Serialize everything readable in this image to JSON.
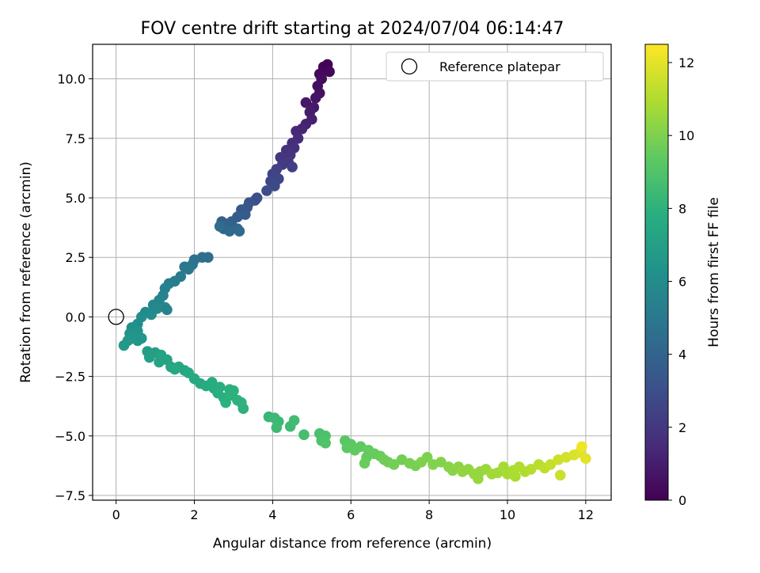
{
  "chart_data": {
    "type": "scatter",
    "title": "FOV centre drift starting at 2024/07/04 06:14:47",
    "xlabel": "Angular distance from reference (arcmin)",
    "ylabel": "Rotation from reference (arcmin)",
    "xlim": [
      -0.6,
      12.65
    ],
    "ylim": [
      -7.7,
      11.45
    ],
    "xticks": [
      0,
      2,
      4,
      6,
      8,
      10,
      12
    ],
    "xtick_labels": [
      "0",
      "2",
      "4",
      "6",
      "8",
      "10",
      "12"
    ],
    "yticks": [
      -7.5,
      -5.0,
      -2.5,
      0.0,
      2.5,
      5.0,
      7.5,
      10.0
    ],
    "ytick_labels": [
      "−7.5",
      "−5.0",
      "−2.5",
      "0.0",
      "2.5",
      "5.0",
      "7.5",
      "10.0"
    ],
    "grid": true,
    "legend": {
      "position": "top-right",
      "entries": [
        "Reference platepar"
      ]
    },
    "reference_point": {
      "x": 0,
      "y": 0
    },
    "colorbar": {
      "label": "Hours from first FF file",
      "range": [
        0,
        12.5
      ],
      "ticks": [
        0,
        2,
        4,
        6,
        8,
        10,
        12
      ],
      "tick_labels": [
        "0",
        "2",
        "4",
        "6",
        "8",
        "10",
        "12"
      ],
      "colormap": "viridis"
    },
    "points": [
      {
        "x": 5.4,
        "y": 10.6,
        "c": 0.0
      },
      {
        "x": 5.3,
        "y": 10.5,
        "c": 0.1
      },
      {
        "x": 5.45,
        "y": 10.3,
        "c": 0.2
      },
      {
        "x": 5.2,
        "y": 10.2,
        "c": 0.3
      },
      {
        "x": 5.25,
        "y": 10.0,
        "c": 0.4
      },
      {
        "x": 5.15,
        "y": 9.7,
        "c": 0.5
      },
      {
        "x": 5.2,
        "y": 9.4,
        "c": 0.6
      },
      {
        "x": 5.1,
        "y": 9.2,
        "c": 0.7
      },
      {
        "x": 4.85,
        "y": 9.0,
        "c": 0.8
      },
      {
        "x": 5.05,
        "y": 8.8,
        "c": 0.9
      },
      {
        "x": 4.95,
        "y": 8.6,
        "c": 1.0
      },
      {
        "x": 5.0,
        "y": 8.3,
        "c": 1.1
      },
      {
        "x": 4.85,
        "y": 8.1,
        "c": 1.2
      },
      {
        "x": 4.75,
        "y": 7.9,
        "c": 1.3
      },
      {
        "x": 4.6,
        "y": 7.8,
        "c": 1.4
      },
      {
        "x": 4.65,
        "y": 7.5,
        "c": 1.5
      },
      {
        "x": 4.5,
        "y": 7.3,
        "c": 1.6
      },
      {
        "x": 4.55,
        "y": 7.1,
        "c": 1.7
      },
      {
        "x": 4.35,
        "y": 7.0,
        "c": 1.8
      },
      {
        "x": 4.45,
        "y": 6.8,
        "c": 1.9
      },
      {
        "x": 4.2,
        "y": 6.7,
        "c": 2.0
      },
      {
        "x": 4.4,
        "y": 6.5,
        "c": 2.1
      },
      {
        "x": 4.25,
        "y": 6.4,
        "c": 2.2
      },
      {
        "x": 4.5,
        "y": 6.3,
        "c": 2.3
      },
      {
        "x": 4.1,
        "y": 6.2,
        "c": 2.4
      },
      {
        "x": 4.0,
        "y": 6.0,
        "c": 2.5
      },
      {
        "x": 4.15,
        "y": 5.8,
        "c": 2.6
      },
      {
        "x": 3.95,
        "y": 5.7,
        "c": 2.7
      },
      {
        "x": 4.05,
        "y": 5.5,
        "c": 2.8
      },
      {
        "x": 3.85,
        "y": 5.3,
        "c": 2.9
      },
      {
        "x": 3.6,
        "y": 5.0,
        "c": 3.0
      },
      {
        "x": 3.55,
        "y": 4.9,
        "c": 3.1
      },
      {
        "x": 3.4,
        "y": 4.8,
        "c": 3.2
      },
      {
        "x": 3.35,
        "y": 4.6,
        "c": 3.3
      },
      {
        "x": 3.2,
        "y": 4.5,
        "c": 3.4
      },
      {
        "x": 3.3,
        "y": 4.3,
        "c": 3.5
      },
      {
        "x": 3.1,
        "y": 4.2,
        "c": 3.6
      },
      {
        "x": 2.95,
        "y": 4.0,
        "c": 3.7
      },
      {
        "x": 2.7,
        "y": 4.0,
        "c": 3.8
      },
      {
        "x": 2.85,
        "y": 3.9,
        "c": 3.9
      },
      {
        "x": 2.75,
        "y": 3.7,
        "c": 4.0
      },
      {
        "x": 3.1,
        "y": 3.7,
        "c": 4.1
      },
      {
        "x": 2.9,
        "y": 3.6,
        "c": 4.2
      },
      {
        "x": 3.15,
        "y": 3.6,
        "c": 4.3
      },
      {
        "x": 2.65,
        "y": 3.8,
        "c": 4.4
      },
      {
        "x": 2.35,
        "y": 2.5,
        "c": 4.5
      },
      {
        "x": 2.2,
        "y": 2.5,
        "c": 4.6
      },
      {
        "x": 2.0,
        "y": 2.4,
        "c": 4.7
      },
      {
        "x": 1.95,
        "y": 2.2,
        "c": 4.8
      },
      {
        "x": 1.75,
        "y": 2.1,
        "c": 4.9
      },
      {
        "x": 1.85,
        "y": 2.0,
        "c": 5.0
      },
      {
        "x": 1.65,
        "y": 1.7,
        "c": 5.1
      },
      {
        "x": 1.5,
        "y": 1.5,
        "c": 5.2
      },
      {
        "x": 1.35,
        "y": 1.4,
        "c": 5.3
      },
      {
        "x": 1.25,
        "y": 1.2,
        "c": 5.4
      },
      {
        "x": 1.2,
        "y": 0.9,
        "c": 5.5
      },
      {
        "x": 1.1,
        "y": 0.7,
        "c": 5.6
      },
      {
        "x": 0.95,
        "y": 0.5,
        "c": 5.7
      },
      {
        "x": 1.25,
        "y": 0.4,
        "c": 5.8
      },
      {
        "x": 0.75,
        "y": 0.2,
        "c": 5.9
      },
      {
        "x": 0.9,
        "y": 0.1,
        "c": 6.0
      },
      {
        "x": 1.3,
        "y": 0.3,
        "c": 5.5
      },
      {
        "x": 1.05,
        "y": 0.35,
        "c": 5.8
      },
      {
        "x": 0.65,
        "y": 0.0,
        "c": 6.0
      },
      {
        "x": 0.55,
        "y": -0.3,
        "c": 6.1
      },
      {
        "x": 0.4,
        "y": -0.45,
        "c": 6.2
      },
      {
        "x": 0.55,
        "y": -0.6,
        "c": 6.3
      },
      {
        "x": 0.35,
        "y": -0.7,
        "c": 6.4
      },
      {
        "x": 0.4,
        "y": -0.9,
        "c": 6.5
      },
      {
        "x": 0.55,
        "y": -1.0,
        "c": 6.6
      },
      {
        "x": 0.3,
        "y": -1.0,
        "c": 6.6
      },
      {
        "x": 0.2,
        "y": -1.2,
        "c": 6.7
      },
      {
        "x": 0.65,
        "y": -0.9,
        "c": 6.5
      },
      {
        "x": 0.8,
        "y": -1.45,
        "c": 6.9
      },
      {
        "x": 1.0,
        "y": -1.5,
        "c": 7.0
      },
      {
        "x": 0.85,
        "y": -1.7,
        "c": 7.0
      },
      {
        "x": 1.15,
        "y": -1.6,
        "c": 7.1
      },
      {
        "x": 1.3,
        "y": -1.8,
        "c": 7.2
      },
      {
        "x": 1.1,
        "y": -1.9,
        "c": 7.2
      },
      {
        "x": 1.4,
        "y": -2.1,
        "c": 7.3
      },
      {
        "x": 1.6,
        "y": -2.1,
        "c": 7.4
      },
      {
        "x": 1.75,
        "y": -2.25,
        "c": 7.4
      },
      {
        "x": 1.5,
        "y": -2.2,
        "c": 7.5
      },
      {
        "x": 1.85,
        "y": -2.35,
        "c": 7.5
      },
      {
        "x": 2.0,
        "y": -2.6,
        "c": 7.6
      },
      {
        "x": 2.15,
        "y": -2.8,
        "c": 7.6
      },
      {
        "x": 2.3,
        "y": -2.9,
        "c": 7.7
      },
      {
        "x": 2.5,
        "y": -3.0,
        "c": 7.7
      },
      {
        "x": 2.45,
        "y": -2.75,
        "c": 7.7
      },
      {
        "x": 2.6,
        "y": -3.2,
        "c": 7.8
      },
      {
        "x": 2.75,
        "y": -3.4,
        "c": 7.8
      },
      {
        "x": 2.9,
        "y": -3.3,
        "c": 7.9
      },
      {
        "x": 3.0,
        "y": -3.1,
        "c": 7.9
      },
      {
        "x": 3.1,
        "y": -3.5,
        "c": 8.0
      },
      {
        "x": 3.25,
        "y": -3.85,
        "c": 8.0
      },
      {
        "x": 2.8,
        "y": -3.6,
        "c": 7.9
      },
      {
        "x": 2.65,
        "y": -2.95,
        "c": 7.8
      },
      {
        "x": 2.9,
        "y": -3.05,
        "c": 7.9
      },
      {
        "x": 3.2,
        "y": -3.6,
        "c": 8.0
      },
      {
        "x": 3.9,
        "y": -4.2,
        "c": 8.3
      },
      {
        "x": 4.05,
        "y": -4.25,
        "c": 8.4
      },
      {
        "x": 4.15,
        "y": -4.4,
        "c": 8.4
      },
      {
        "x": 4.1,
        "y": -4.65,
        "c": 8.5
      },
      {
        "x": 4.45,
        "y": -4.6,
        "c": 8.5
      },
      {
        "x": 4.55,
        "y": -4.35,
        "c": 8.6
      },
      {
        "x": 4.8,
        "y": -4.95,
        "c": 8.7
      },
      {
        "x": 5.2,
        "y": -4.9,
        "c": 8.8
      },
      {
        "x": 5.35,
        "y": -5.0,
        "c": 8.9
      },
      {
        "x": 5.25,
        "y": -5.2,
        "c": 8.9
      },
      {
        "x": 5.35,
        "y": -5.3,
        "c": 9.0
      },
      {
        "x": 5.85,
        "y": -5.2,
        "c": 9.2
      },
      {
        "x": 6.0,
        "y": -5.35,
        "c": 9.3
      },
      {
        "x": 5.9,
        "y": -5.5,
        "c": 9.3
      },
      {
        "x": 6.1,
        "y": -5.6,
        "c": 9.4
      },
      {
        "x": 6.25,
        "y": -5.45,
        "c": 9.4
      },
      {
        "x": 6.45,
        "y": -5.6,
        "c": 9.5
      },
      {
        "x": 6.6,
        "y": -5.75,
        "c": 9.5
      },
      {
        "x": 6.4,
        "y": -5.9,
        "c": 9.5
      },
      {
        "x": 6.35,
        "y": -6.15,
        "c": 9.6
      },
      {
        "x": 6.75,
        "y": -5.85,
        "c": 9.6
      },
      {
        "x": 6.85,
        "y": -6.0,
        "c": 9.7
      },
      {
        "x": 6.95,
        "y": -6.1,
        "c": 9.7
      },
      {
        "x": 7.1,
        "y": -6.2,
        "c": 9.8
      },
      {
        "x": 7.3,
        "y": -6.0,
        "c": 9.8
      },
      {
        "x": 7.5,
        "y": -6.15,
        "c": 9.9
      },
      {
        "x": 7.65,
        "y": -6.25,
        "c": 9.9
      },
      {
        "x": 7.8,
        "y": -6.1,
        "c": 10.0
      },
      {
        "x": 7.95,
        "y": -5.9,
        "c": 10.0
      },
      {
        "x": 8.1,
        "y": -6.2,
        "c": 10.1
      },
      {
        "x": 8.3,
        "y": -6.1,
        "c": 10.1
      },
      {
        "x": 8.5,
        "y": -6.3,
        "c": 10.2
      },
      {
        "x": 8.6,
        "y": -6.45,
        "c": 10.2
      },
      {
        "x": 8.75,
        "y": -6.3,
        "c": 10.3
      },
      {
        "x": 8.85,
        "y": -6.5,
        "c": 10.4
      },
      {
        "x": 9.0,
        "y": -6.4,
        "c": 10.4
      },
      {
        "x": 9.15,
        "y": -6.6,
        "c": 10.5
      },
      {
        "x": 9.3,
        "y": -6.5,
        "c": 10.5
      },
      {
        "x": 9.45,
        "y": -6.4,
        "c": 10.6
      },
      {
        "x": 9.6,
        "y": -6.6,
        "c": 10.7
      },
      {
        "x": 9.75,
        "y": -6.55,
        "c": 10.7
      },
      {
        "x": 9.9,
        "y": -6.3,
        "c": 10.8
      },
      {
        "x": 10.0,
        "y": -6.6,
        "c": 10.8
      },
      {
        "x": 10.15,
        "y": -6.45,
        "c": 10.9
      },
      {
        "x": 10.3,
        "y": -6.3,
        "c": 11.0
      },
      {
        "x": 10.45,
        "y": -6.5,
        "c": 11.0
      },
      {
        "x": 10.6,
        "y": -6.4,
        "c": 11.1
      },
      {
        "x": 10.8,
        "y": -6.2,
        "c": 11.2
      },
      {
        "x": 10.95,
        "y": -6.35,
        "c": 11.3
      },
      {
        "x": 11.1,
        "y": -6.2,
        "c": 11.4
      },
      {
        "x": 11.3,
        "y": -6.0,
        "c": 11.5
      },
      {
        "x": 11.5,
        "y": -5.9,
        "c": 11.7
      },
      {
        "x": 11.7,
        "y": -5.8,
        "c": 11.8
      },
      {
        "x": 11.85,
        "y": -5.7,
        "c": 11.9
      },
      {
        "x": 12.0,
        "y": -5.95,
        "c": 12.0
      },
      {
        "x": 11.9,
        "y": -5.45,
        "c": 12.2
      },
      {
        "x": 9.25,
        "y": -6.8,
        "c": 10.5
      },
      {
        "x": 11.35,
        "y": -6.65,
        "c": 11.5
      },
      {
        "x": 10.2,
        "y": -6.7,
        "c": 10.9
      }
    ]
  }
}
